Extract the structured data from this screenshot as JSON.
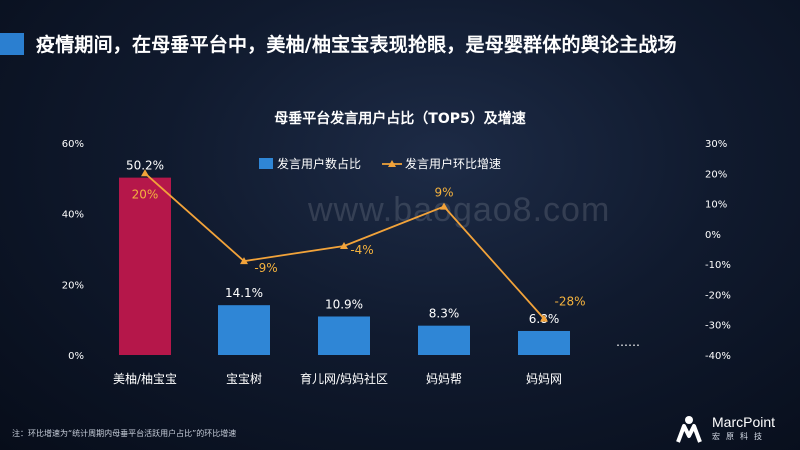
{
  "slide": {
    "title": "疫情期间，在母垂平台中，美柚/柚宝宝表现抢眼，是母婴群体的舆论主战场",
    "footnote": "注：环比增速为“统计周期内母垂平台活跃用户占比”的环比增速",
    "watermark": "www.baogao8.com",
    "logo": {
      "name": "MarcPoint",
      "sub": "宏原科技",
      "icon": "marcpoint-logo-icon"
    }
  },
  "colors": {
    "accent": "#2b7fd0",
    "bar": "#2f86d6",
    "bar_highlight": "#b5174a",
    "line": "#f2a33a",
    "growth_label": "#f4b23e"
  },
  "chart_data": {
    "type": "bar+line",
    "title": "母垂平台发言用户占比（TOP5）及增速",
    "categories": [
      "美柚/柚宝宝",
      "宝宝树",
      "育儿网/妈妈社区",
      "妈妈帮",
      "妈妈网"
    ],
    "extra_category_label": "……",
    "series": [
      {
        "name": "发言用户数占比",
        "type": "bar",
        "axis": "left",
        "values": [
          50.2,
          14.1,
          10.9,
          8.3,
          6.8
        ],
        "labels": [
          "50.2%",
          "14.1%",
          "10.9%",
          "8.3%",
          "6.8%"
        ]
      },
      {
        "name": "发言用户环比增速",
        "type": "line",
        "axis": "right",
        "values": [
          20,
          -9,
          -4,
          9,
          -28
        ],
        "labels": [
          "20%",
          "-9%",
          "-4%",
          "9%",
          "-28%"
        ]
      }
    ],
    "y_left": {
      "range": [
        0,
        60
      ],
      "ticks": [
        "0%",
        "20%",
        "40%",
        "60%"
      ]
    },
    "y_right": {
      "range": [
        -40,
        30
      ],
      "ticks": [
        "30%",
        "20%",
        "10%",
        "0%",
        "-10%",
        "-20%",
        "-30%",
        "-40%"
      ]
    },
    "legend_position": "top-center",
    "grid": false
  }
}
